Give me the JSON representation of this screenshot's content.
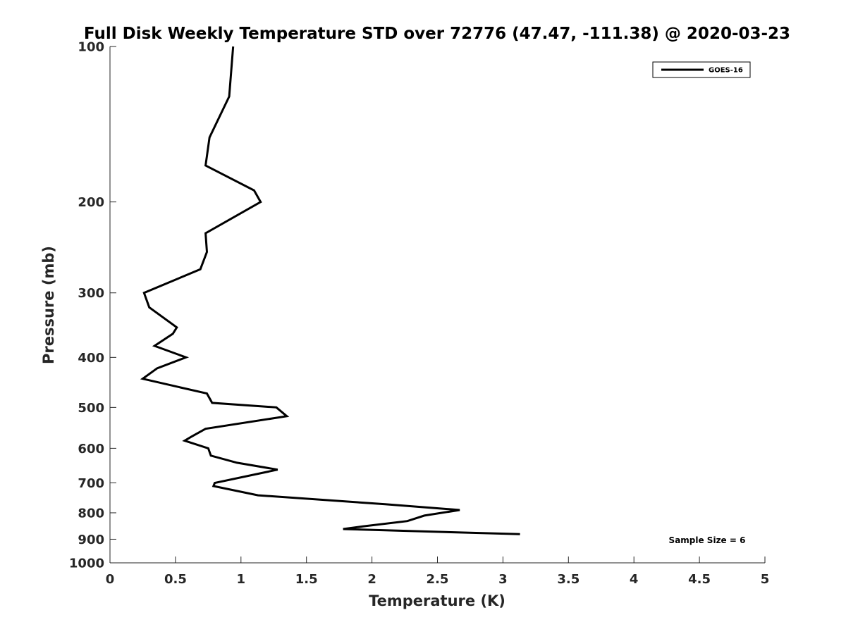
{
  "chart_data": {
    "type": "line",
    "title": "Full Disk Weekly Temperature STD over 72776 (47.47, -111.38) @ 2020-03-23",
    "xlabel": "Temperature (K)",
    "ylabel": "Pressure (mb)",
    "xlim": [
      0,
      5
    ],
    "ylim": [
      100,
      1000
    ],
    "y_scale": "log",
    "y_reversed": true,
    "x_ticks": [
      "0",
      "0.5",
      "1",
      "1.5",
      "2",
      "2.5",
      "3",
      "3.5",
      "4",
      "4.5",
      "5"
    ],
    "y_ticks": [
      "100",
      "200",
      "300",
      "400",
      "500",
      "600",
      "700",
      "800",
      "900",
      "1000"
    ],
    "grid": false,
    "legend_position": "top-right",
    "series": [
      {
        "name": "GOES-16",
        "color": "#000000",
        "x": [
          0.94,
          0.91,
          0.76,
          0.73,
          1.1,
          1.15,
          0.73,
          0.74,
          0.69,
          0.26,
          0.3,
          0.51,
          0.48,
          0.34,
          0.58,
          0.36,
          0.25,
          0.74,
          0.78,
          1.27,
          1.35,
          0.73,
          0.62,
          0.57,
          0.75,
          0.77,
          0.97,
          1.28,
          0.8,
          0.79,
          1.13,
          2.1,
          2.67,
          2.4,
          2.27,
          1.93,
          1.78,
          3.13
        ],
        "y": [
          100,
          125,
          150,
          170,
          190,
          200,
          230,
          250,
          270,
          300,
          320,
          350,
          360,
          380,
          400,
          420,
          440,
          470,
          490,
          500,
          520,
          550,
          570,
          580,
          600,
          620,
          640,
          660,
          700,
          710,
          740,
          770,
          790,
          810,
          830,
          850,
          860,
          880
        ]
      }
    ],
    "annotations": [
      "Sample Size = 6"
    ]
  }
}
